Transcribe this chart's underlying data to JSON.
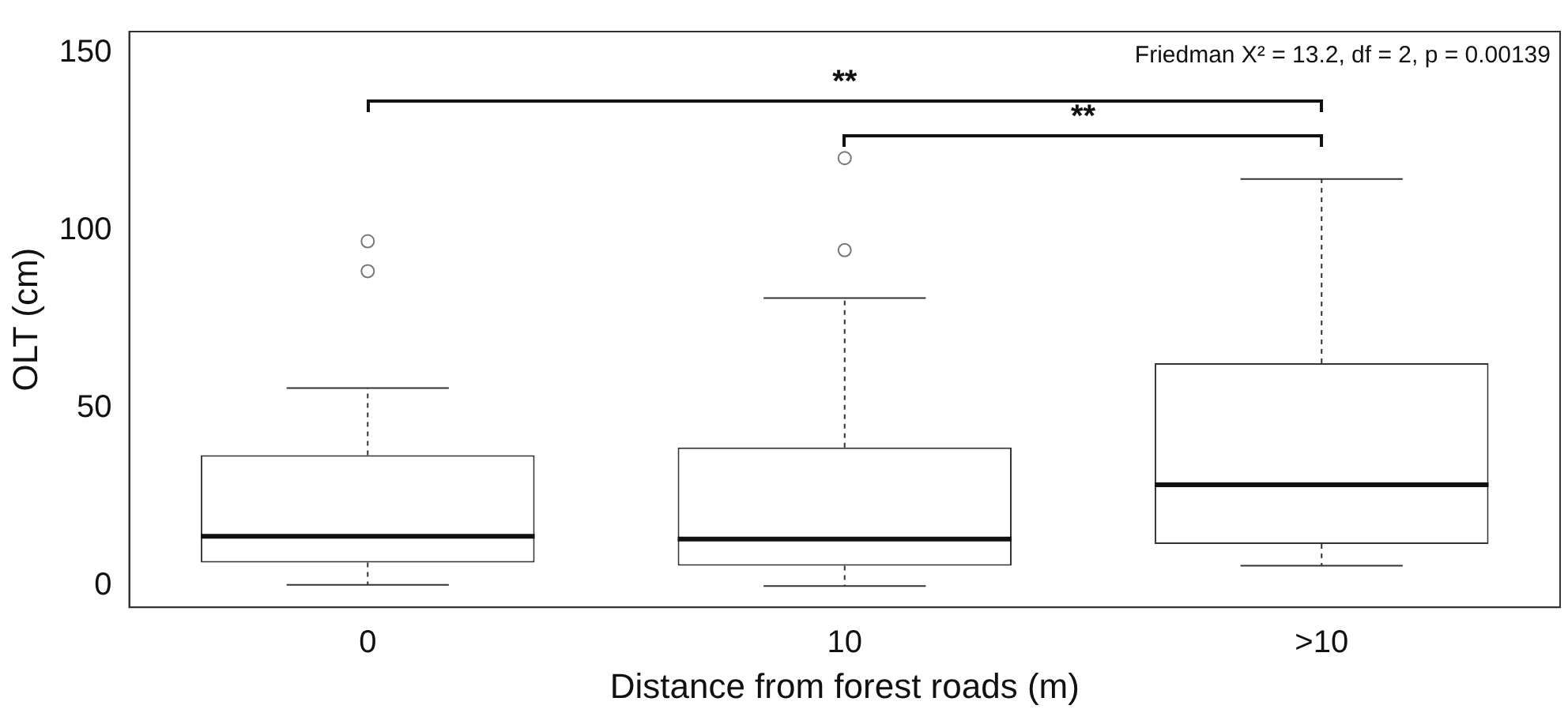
{
  "chart_data": {
    "type": "box",
    "xlabel": "Distance from forest roads (m)",
    "ylabel": "OLT (cm)",
    "categories": [
      "0",
      "10",
      ">10"
    ],
    "boxes": [
      {
        "low": 0.3,
        "q1": 6.6,
        "median": 14,
        "q3": 36.8,
        "high": 55.7,
        "outliers": [
          97,
          88.6
        ]
      },
      {
        "low": 0,
        "q1": 5.7,
        "median": 13.2,
        "q3": 39,
        "high": 81,
        "outliers": [
          120.4,
          94.5
        ]
      },
      {
        "low": 5.7,
        "q1": 11.8,
        "median": 28.5,
        "q3": 62.7,
        "high": 114.5
      }
    ],
    "color": "#333333",
    "ylim": [
      -6,
      156
    ],
    "yticks": [
      0,
      50,
      100,
      150
    ],
    "grid": false,
    "legend": false,
    "annotations": [
      "Friedman X² = 13.2, df = 2, p = 0.00139",
      "**",
      "**"
    ]
  }
}
